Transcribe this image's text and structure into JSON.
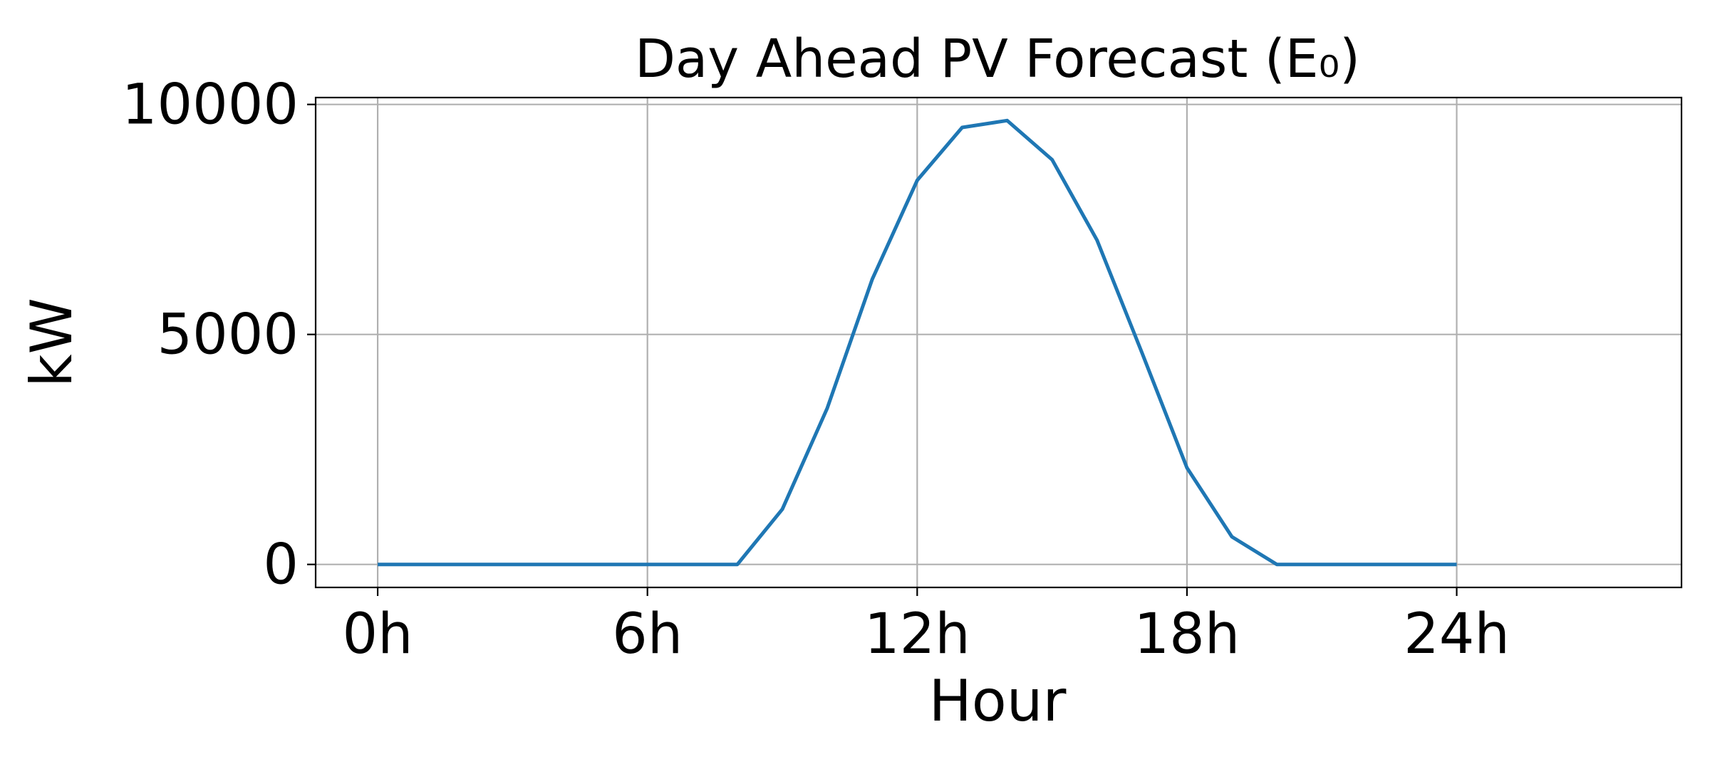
{
  "chart_data": {
    "type": "line",
    "title": "Day Ahead PV Forecast (E₀)",
    "xlabel": "Hour",
    "ylabel": "kW",
    "x": [
      0,
      1,
      2,
      3,
      4,
      5,
      6,
      7,
      8,
      9,
      10,
      11,
      12,
      13,
      14,
      15,
      16,
      17,
      18,
      19,
      20,
      21,
      22,
      23,
      24
    ],
    "series": [
      {
        "values": [
          0,
          0,
          0,
          0,
          0,
          0,
          0,
          0,
          0,
          1200,
          3400,
          6200,
          8350,
          9500,
          9650,
          8800,
          7050,
          4600,
          2100,
          600,
          0,
          0,
          0,
          0,
          0
        ]
      }
    ],
    "xticks": [
      0,
      6,
      12,
      18,
      24
    ],
    "xtick_labels": [
      "0h",
      "6h",
      "12h",
      "18h",
      "24h"
    ],
    "yticks": [
      0,
      5000,
      10000
    ],
    "ytick_labels": [
      "0",
      "5000",
      "10000"
    ],
    "xlim": [
      -1.38,
      29.0
    ],
    "ylim": [
      -500,
      10150
    ],
    "grid": true,
    "line_color": "#1f77b4"
  }
}
